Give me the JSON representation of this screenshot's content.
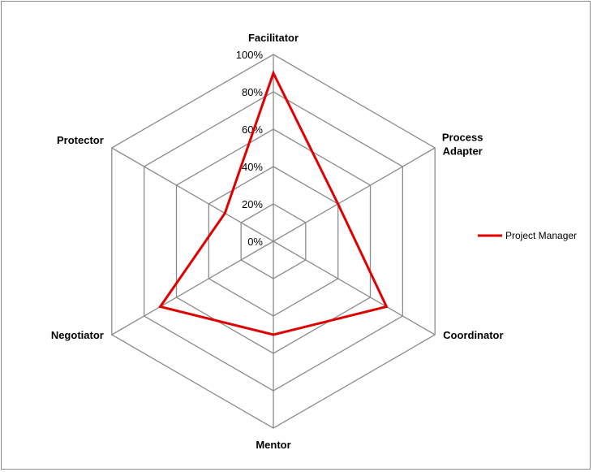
{
  "chart_data": {
    "type": "radar",
    "categories": [
      "Facilitator",
      "Process Adapter",
      "Coordinator",
      "Mentor",
      "Negotiator",
      "Protector"
    ],
    "category_lines": [
      [
        "Facilitator"
      ],
      [
        "Process",
        "Adapter"
      ],
      [
        "Coordinator"
      ],
      [
        "Mentor"
      ],
      [
        "Negotiator"
      ],
      [
        "Protector"
      ]
    ],
    "series": [
      {
        "name": "Project Manager",
        "color": "#e00000",
        "values": [
          0.9,
          0.4,
          0.7,
          0.5,
          0.7,
          0.3
        ]
      }
    ],
    "range": [
      0,
      1
    ],
    "ticks": [
      0,
      0.2,
      0.4,
      0.6,
      0.8,
      1.0
    ],
    "tick_labels": [
      "0%",
      "20%",
      "40%",
      "60%",
      "80%",
      "100%"
    ],
    "grid": true,
    "grid_color": "#8c8c8c",
    "legend_position": "right"
  }
}
